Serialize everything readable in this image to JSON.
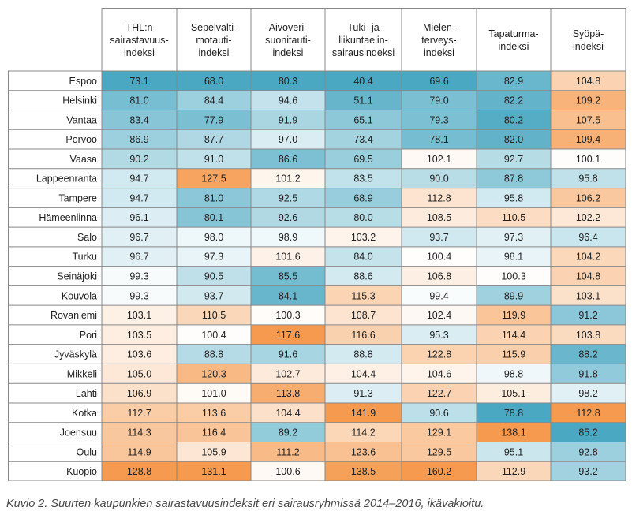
{
  "chart_data": {
    "type": "heatmap",
    "columns": [
      "THL:n\nsairastavuus-\nindeksi",
      "Sepelvalti-\nmotauti-\nindeksi",
      "Aivoveri-\nsuonitauti-\nindeksi",
      "Tuki- ja\nliikuntaelin-\nsairausindeksi",
      "Mielen-\nterveys-\nindeksi",
      "Tapaturma-\nindeksi",
      "Syöpä-\nindeksi"
    ],
    "rows": [
      "Espoo",
      "Helsinki",
      "Vantaa",
      "Porvoo",
      "Vaasa",
      "Lappeenranta",
      "Tampere",
      "Hämeenlinna",
      "Salo",
      "Turku",
      "Seinäjoki",
      "Kouvola",
      "Rovaniemi",
      "Pori",
      "Jyväskylä",
      "Mikkeli",
      "Lahti",
      "Kotka",
      "Joensuu",
      "Oulu",
      "Kuopio"
    ],
    "values": [
      [
        "73.1",
        "68.0",
        "80.3",
        "40.4",
        "69.6",
        "82.9",
        "104.8"
      ],
      [
        "81.0",
        "84.4",
        "94.6",
        "51.1",
        "79.0",
        "82.2",
        "109.2"
      ],
      [
        "83.4",
        "77.9",
        "91.9",
        "65.1",
        "79.3",
        "80.2",
        "107.5"
      ],
      [
        "86.9",
        "87.7",
        "97.0",
        "73.4",
        "78.1",
        "82.0",
        "109.4"
      ],
      [
        "90.2",
        "91.0",
        "86.6",
        "69.5",
        "102.1",
        "92.7",
        "100.1"
      ],
      [
        "94.7",
        "127.5",
        "101.2",
        "83.5",
        "90.0",
        "87.8",
        "95.8"
      ],
      [
        "94.7",
        "81.0",
        "92.5",
        "68.9",
        "112.8",
        "95.8",
        "106.2"
      ],
      [
        "96.1",
        "80.1",
        "92.6",
        "80.0",
        "108.5",
        "110.5",
        "102.2"
      ],
      [
        "96.7",
        "98.0",
        "98.9",
        "103.2",
        "93.7",
        "97.3",
        "96.4"
      ],
      [
        "96.7",
        "97.3",
        "101.6",
        "84.0",
        "100.4",
        "98.1",
        "104.2"
      ],
      [
        "99.3",
        "90.5",
        "85.5",
        "88.6",
        "106.8",
        "100.3",
        "104.8"
      ],
      [
        "99.3",
        "93.7",
        "84.1",
        "115.3",
        "99.4",
        "89.9",
        "103.1"
      ],
      [
        "103.1",
        "110.5",
        "100.3",
        "108.7",
        "102.4",
        "119.9",
        "91.2"
      ],
      [
        "103.5",
        "100.4",
        "117.6",
        "116.6",
        "95.3",
        "114.4",
        "103.8"
      ],
      [
        "103.6",
        "88.8",
        "91.6",
        "88.8",
        "122.8",
        "115.9",
        "88.2"
      ],
      [
        "105.0",
        "120.3",
        "102.7",
        "104.4",
        "104.6",
        "98.8",
        "91.8"
      ],
      [
        "106.9",
        "101.0",
        "113.8",
        "91.3",
        "122.7",
        "105.1",
        "98.2"
      ],
      [
        "112.7",
        "113.6",
        "104.4",
        "141.9",
        "90.6",
        "78.8",
        "112.8"
      ],
      [
        "114.3",
        "116.4",
        "89.2",
        "114.2",
        "129.1",
        "138.1",
        "85.2"
      ],
      [
        "114.9",
        "105.9",
        "111.2",
        "123.6",
        "129.5",
        "95.1",
        "92.8"
      ],
      [
        "128.8",
        "131.1",
        "100.6",
        "138.5",
        "160.2",
        "112.9",
        "93.2"
      ]
    ],
    "colors": {
      "low": "#4aa8c2",
      "mid": "#ffffff",
      "high": "#f59a4e",
      "grid": "#888888",
      "text": "#222222"
    }
  },
  "caption": "Kuvio 2. Suurten kaupunkien sairastavuusindeksit eri sairausryhmissä 2014–2016, ikävakioitu."
}
